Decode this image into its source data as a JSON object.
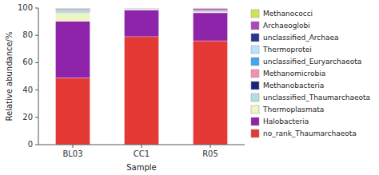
{
  "chart_data": {
    "type": "bar",
    "stacked": true,
    "xlabel": "Sample",
    "ylabel": "Relative abundance/%",
    "categories": [
      "BL03",
      "CC1",
      "R05"
    ],
    "series": [
      {
        "name": "Methanococci",
        "color": "#d4e157",
        "values": [
          0.3,
          0.1,
          0.3
        ]
      },
      {
        "name": "Archaeoglobi",
        "color": "#ab47bc",
        "values": [
          0.3,
          0.1,
          1.2
        ]
      },
      {
        "name": "unclassified_Archaea",
        "color": "#283593",
        "values": [
          0.5,
          0.3,
          0.5
        ]
      },
      {
        "name": "Thermoprotei",
        "color": "#b3e5fc",
        "values": [
          0.2,
          0.1,
          0.1
        ]
      },
      {
        "name": "unclassified_Euryarchaeota",
        "color": "#42a5f5",
        "values": [
          0.3,
          0.1,
          0.2
        ]
      },
      {
        "name": "Methanomicrobia",
        "color": "#f48fb1",
        "values": [
          0.3,
          0.1,
          0.2
        ]
      },
      {
        "name": "Methanobacteria",
        "color": "#1a237e",
        "values": [
          0.5,
          0.2,
          0.2
        ]
      },
      {
        "name": "unclassified_Thaumarchaeota",
        "color": "#b2dfdb",
        "values": [
          1.5,
          0.2,
          0.3
        ]
      },
      {
        "name": "Thermoplasmata",
        "color": "#f0f4c3",
        "values": [
          5.8,
          0.3,
          0.5
        ]
      },
      {
        "name": "Halobacteria",
        "color": "#8e24aa",
        "values": [
          41.5,
          19.5,
          20.5
        ]
      },
      {
        "name": "no_rank_Thaumarchaeota",
        "color": "#e53935",
        "values": [
          48.8,
          79.0,
          76.0
        ]
      }
    ],
    "ylim": [
      0,
      100
    ],
    "yticks": [
      0,
      20,
      40,
      60,
      80,
      100
    ],
    "grid": false,
    "legend": "right"
  }
}
